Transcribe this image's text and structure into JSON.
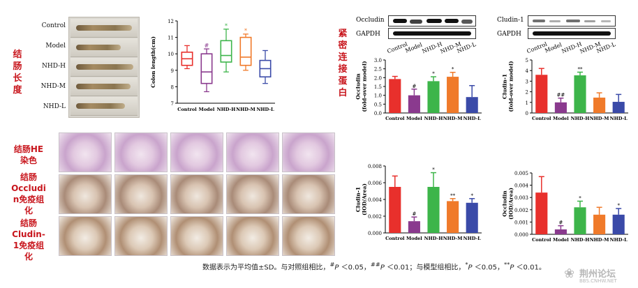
{
  "side_labels": {
    "colon_length": "结肠长度",
    "tight_junction": "紧密连接蛋白",
    "he": [
      "结肠HE",
      "染色"
    ],
    "occludin_ihc": [
      "结肠",
      "Occludi",
      "n免疫组",
      "化"
    ],
    "cludin_ihc": [
      "结肠",
      "Cludin-",
      "1免疫组",
      "化"
    ]
  },
  "photo_groups": [
    "Control",
    "Model",
    "NHD-H",
    "NHD-M",
    "NHD-L"
  ],
  "blot_labels": {
    "left": [
      "Occludin",
      "GAPDH"
    ],
    "right": [
      "Cludin-1",
      "GAPDH"
    ]
  },
  "footnote": {
    "text1": "数据表示为平均值±SD。与对照组相比，",
    "m1": "#",
    "p1": "P",
    "t2": " ＜0.05，",
    "m2": "##",
    "p2": "P",
    "t3": " ＜0.01；与模型组相比，",
    "m3": "*",
    "p3": "P",
    "t4": " ＜0.05，",
    "m4": "**",
    "p4": "P",
    "t5": " ＜0.01。"
  },
  "watermark": "荆州论坛",
  "watermark_sub": "BBS.CNHW.NET",
  "colors": {
    "Control": "#e8302c",
    "Model": "#8a3a8e",
    "NHD-H": "#3db54a",
    "NHD-M": "#f07a2a",
    "NHD-L": "#3a4aa8",
    "label_red": "#c8161d"
  },
  "chart_data": [
    {
      "id": "colon_length",
      "type": "box",
      "ylabel": "Colon length(cm)",
      "ylim": [
        7,
        12
      ],
      "ticks": [
        "7",
        "8",
        "9",
        "10",
        "11",
        "12"
      ],
      "tick_values": [
        7,
        8,
        9,
        10,
        11,
        12
      ],
      "categories": [
        "Control",
        "Model",
        "NHD-H",
        "NHD-M",
        "NHD-L"
      ],
      "boxes": [
        {
          "min": 9.1,
          "q1": 9.3,
          "median": 9.7,
          "q3": 10.1,
          "max": 10.5,
          "mark": ""
        },
        {
          "min": 7.7,
          "q1": 8.2,
          "median": 8.9,
          "q3": 10.0,
          "max": 10.3,
          "mark": "#"
        },
        {
          "min": 8.9,
          "q1": 9.5,
          "median": 9.9,
          "q3": 10.8,
          "max": 11.5,
          "mark": "*"
        },
        {
          "min": 9.0,
          "q1": 9.3,
          "median": 9.8,
          "q3": 11.0,
          "max": 11.2,
          "mark": "*"
        },
        {
          "min": 8.2,
          "q1": 8.6,
          "median": 9.1,
          "q3": 9.6,
          "max": 10.2,
          "mark": ""
        }
      ]
    },
    {
      "id": "occludin_wb",
      "type": "bar",
      "ylabel": "Occludin\n(fold-over model)",
      "ylim": [
        0,
        3
      ],
      "ticks": [
        "0.0",
        "0.5",
        "1.0",
        "1.5",
        "2.0",
        "2.5",
        "3.0"
      ],
      "tick_values": [
        0,
        0.5,
        1,
        1.5,
        2,
        2.5,
        3
      ],
      "categories": [
        "Control",
        "Model",
        "NHD-H",
        "NHD-M",
        "NHD-L"
      ],
      "values": [
        1.92,
        1.0,
        1.8,
        2.05,
        0.9
      ],
      "errors": [
        0.15,
        0.35,
        0.25,
        0.25,
        0.65
      ],
      "marks": [
        "",
        "#",
        "*",
        "*",
        ""
      ]
    },
    {
      "id": "cludin_wb",
      "type": "bar",
      "ylabel": "Cludin-1\n(fold-over model)",
      "ylim": [
        0,
        5
      ],
      "ticks": [
        "0",
        "1",
        "2",
        "3",
        "4",
        "5"
      ],
      "tick_values": [
        0,
        1,
        2,
        3,
        4,
        5
      ],
      "categories": [
        "Control",
        "Model",
        "NHD-H",
        "NHD-M",
        "NHD-L"
      ],
      "values": [
        3.6,
        1.0,
        3.55,
        1.45,
        1.05
      ],
      "errors": [
        0.6,
        0.4,
        0.3,
        0.45,
        0.7
      ],
      "marks": [
        "",
        "##",
        "**",
        "",
        ""
      ]
    },
    {
      "id": "cludin_ihc",
      "type": "bar",
      "ylabel": "Cludin-1\n(IOD/Area)",
      "ylim": [
        0,
        0.008
      ],
      "ticks": [
        "0.000",
        "0.002",
        "0.004",
        "0.006",
        "0.008"
      ],
      "tick_values": [
        0,
        0.002,
        0.004,
        0.006,
        0.008
      ],
      "categories": [
        "Control",
        "Model",
        "NHD-H",
        "NHD-M",
        "NHD-L"
      ],
      "values": [
        0.0055,
        0.0014,
        0.0055,
        0.0038,
        0.0036
      ],
      "errors": [
        0.0013,
        0.0005,
        0.0017,
        0.0003,
        0.0005
      ],
      "marks": [
        "",
        "#",
        "*",
        "**",
        "*"
      ]
    },
    {
      "id": "occludin_ihc",
      "type": "bar",
      "ylabel": "Occludin\n(IOD/Area)",
      "ylim": [
        0,
        0.005
      ],
      "ticks": [
        "0.000",
        "0.001",
        "0.002",
        "0.003",
        "0.004",
        "0.005"
      ],
      "tick_values": [
        0,
        0.001,
        0.002,
        0.003,
        0.004,
        0.005
      ],
      "categories": [
        "Control",
        "Model",
        "NHD-H",
        "NHD-M",
        "NHD-L"
      ],
      "values": [
        0.0034,
        0.0004,
        0.0022,
        0.0016,
        0.0016
      ],
      "errors": [
        0.0013,
        0.0003,
        0.0005,
        0.0006,
        0.0005
      ],
      "marks": [
        "",
        "#",
        "*",
        "",
        "*"
      ]
    }
  ]
}
